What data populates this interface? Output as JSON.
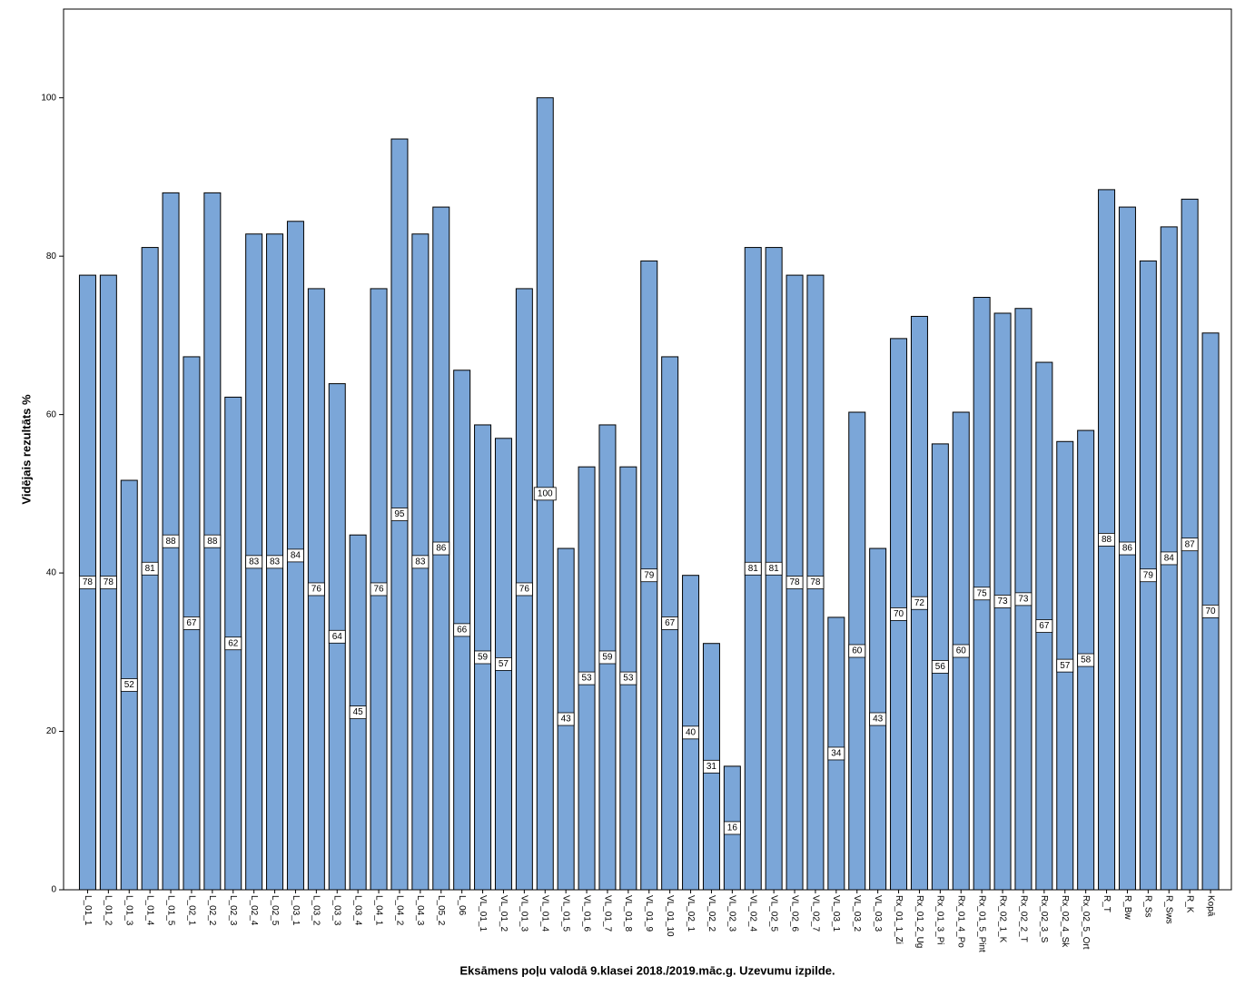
{
  "chart_data": {
    "type": "bar",
    "x_label": "Eksāmens poļu valodā 9.klasei 2018./2019.māc.g. Uzevumu izpilde.",
    "y_label": "Vidējais rezultāts %",
    "categories": [
      "L_01_1",
      "L_01_2",
      "L_01_3",
      "L_01_4",
      "L_01_5",
      "L_02_1",
      "L_02_2",
      "L_02_3",
      "L_02_4",
      "L_02_5",
      "L_03_1",
      "L_03_2",
      "L_03_3",
      "L_03_4",
      "L_04_1",
      "L_04_2",
      "L_04_3",
      "L_05_2",
      "L_06",
      "VL_01_1",
      "VL_01_2",
      "VL_01_3",
      "VL_01_4",
      "VL_01_5",
      "VL_01_6",
      "VL_01_7",
      "VL_01_8",
      "VL_01_9",
      "VL_01_10",
      "VL_02_1",
      "VL_02_2",
      "VL_02_3",
      "VL_02_4",
      "VL_02_5",
      "VL_02_6",
      "VL_02_7",
      "VL_03_1",
      "VL_03_2",
      "VL_03_3",
      "Rx_01_1_Zi",
      "Rx_01_2_Ug",
      "Rx_01_3_Pi",
      "Rx_01_4_Po",
      "Rx_01_5_Pint",
      "Rx_02_1_K",
      "Rx_02_2_T",
      "Rx_02_3_S",
      "Rx_02_4_Sk",
      "Rx_02_5_Ort",
      "R_T",
      "R_Bw",
      "R_Ss",
      "R_Sws",
      "R_K",
      "Kopā"
    ],
    "values": [
      77.6,
      77.6,
      51.7,
      81.1,
      88.0,
      67.3,
      88.0,
      62.2,
      82.8,
      82.8,
      84.4,
      75.9,
      63.9,
      44.8,
      75.9,
      94.8,
      82.8,
      86.2,
      65.6,
      58.7,
      57.0,
      75.9,
      100,
      43.1,
      53.4,
      58.7,
      53.4,
      79.4,
      67.3,
      39.7,
      31.1,
      15.6,
      81.1,
      81.1,
      77.6,
      77.6,
      34.4,
      60.3,
      43.1,
      69.6,
      72.4,
      56.3,
      60.3,
      74.8,
      72.8,
      73.4,
      66.6,
      56.6,
      58.0,
      88.4,
      86.2,
      79.4,
      83.7,
      87.2,
      70.3
    ],
    "value_labels": [
      "78",
      "78",
      "52",
      "81",
      "88",
      "67",
      "88",
      "62",
      "83",
      "83",
      "84",
      "76",
      "64",
      "45",
      "76",
      "95",
      "83",
      "86",
      "66",
      "59",
      "57",
      "76",
      "100",
      "43",
      "53",
      "59",
      "53",
      "79",
      "67",
      "40",
      "31",
      "16",
      "81",
      "81",
      "78",
      "78",
      "34",
      "60",
      "43",
      "70",
      "72",
      "56",
      "60",
      "75",
      "73",
      "73",
      "67",
      "57",
      "58",
      "88",
      "86",
      "79",
      "84",
      "87",
      "70"
    ],
    "color": "#7ba6d8",
    "ylim": [
      0,
      111.2
    ],
    "yticks": [
      0,
      20,
      40,
      60,
      80,
      100
    ]
  }
}
